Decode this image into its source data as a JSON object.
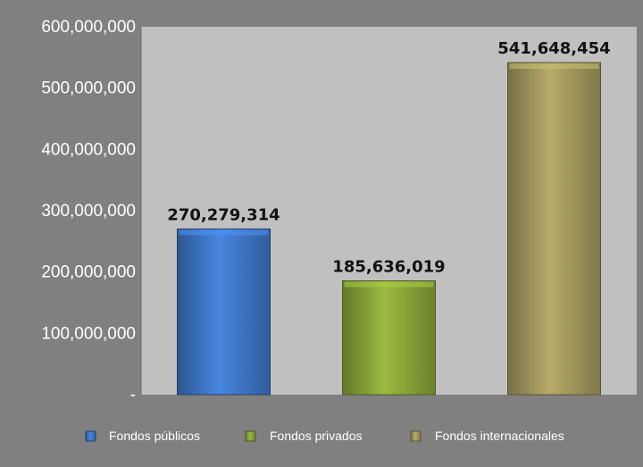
{
  "chart_data": {
    "type": "bar",
    "categories": [
      "Fondos públicos",
      "Fondos privados",
      "Fondos internacionales"
    ],
    "values": [
      270279314,
      185636019,
      541648454
    ],
    "value_labels": [
      "270,279,314",
      "185,636,019",
      "541,648,454"
    ],
    "ylim": [
      0,
      600000000
    ],
    "yticks": [
      0,
      100000000,
      200000000,
      300000000,
      400000000,
      500000000,
      600000000
    ],
    "ytick_labels": [
      "-",
      "100,000,000",
      "200,000,000",
      "300,000,000",
      "400,000,000",
      "500,000,000",
      "600,000,000"
    ],
    "colors": [
      "#3f78c8",
      "#8aa63a",
      "#a39a5e"
    ],
    "legend_position": "bottom",
    "grid": false,
    "title": "",
    "xlabel": "",
    "ylabel": ""
  }
}
